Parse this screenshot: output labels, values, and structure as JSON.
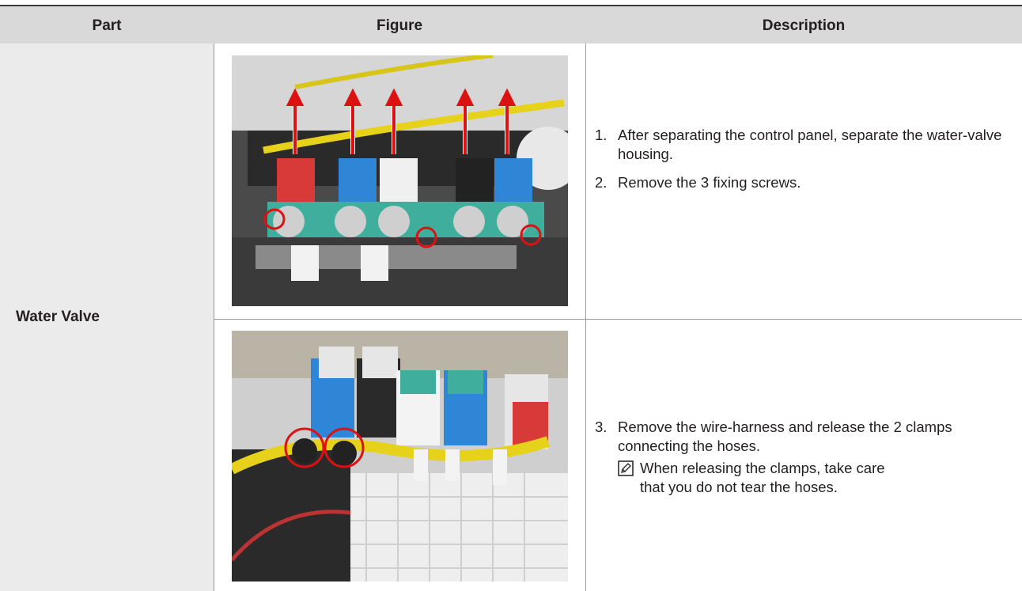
{
  "table": {
    "headers": [
      "Part",
      "Figure",
      "Description"
    ],
    "part": "Water Valve",
    "rows": [
      {
        "steps": [
          {
            "number": "1.",
            "text": "After separating the control panel, separate the water-valve housing."
          },
          {
            "number": "2.",
            "text": "Remove the 3 fixing screws."
          }
        ]
      },
      {
        "steps": [
          {
            "number": "3.",
            "text": "Remove the wire-harness and release the 2 clamps connecting the hoses.",
            "note": "When releasing the clamps, take care that you do not tear the hoses."
          }
        ]
      }
    ]
  }
}
